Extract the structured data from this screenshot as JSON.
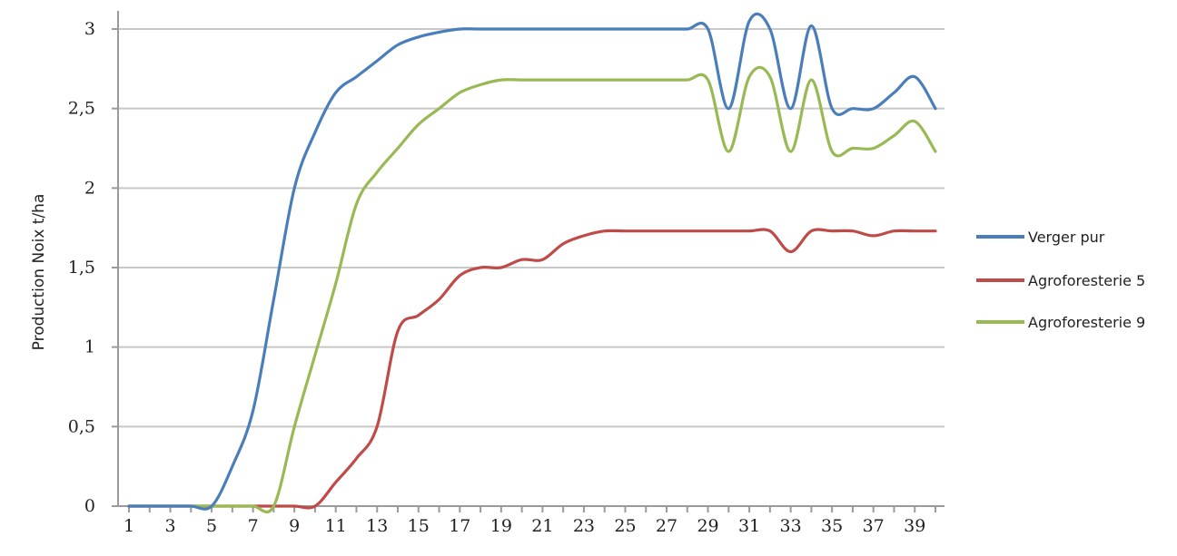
{
  "chart_data": {
    "type": "line",
    "title": "",
    "xlabel": "",
    "ylabel": "Production Noix t/ha",
    "ylim": [
      0,
      3
    ],
    "xlim": [
      1,
      40
    ],
    "grid": true,
    "legend_position": "right",
    "y_ticks": [
      "0",
      "0,5",
      "1",
      "1,5",
      "2",
      "2,5",
      "3"
    ],
    "y_tick_values": [
      0,
      0.5,
      1,
      1.5,
      2,
      2.5,
      3
    ],
    "x_ticks": [
      "1",
      "3",
      "5",
      "7",
      "9",
      "11",
      "13",
      "15",
      "17",
      "19",
      "21",
      "23",
      "25",
      "27",
      "29",
      "31",
      "33",
      "35",
      "37",
      "39"
    ],
    "x": [
      1,
      2,
      3,
      4,
      5,
      6,
      7,
      8,
      9,
      10,
      11,
      12,
      13,
      14,
      15,
      16,
      17,
      18,
      19,
      20,
      21,
      22,
      23,
      24,
      25,
      26,
      27,
      28,
      29,
      30,
      31,
      32,
      33,
      34,
      35,
      36,
      37,
      38,
      39,
      40
    ],
    "series": [
      {
        "name": "Verger pur",
        "color": "#4a7ebb",
        "values": [
          0,
          0,
          0,
          0,
          0,
          0.25,
          0.6,
          1.3,
          2.0,
          2.35,
          2.6,
          2.7,
          2.8,
          2.9,
          2.95,
          2.98,
          3.0,
          3.0,
          3.0,
          3.0,
          3.0,
          3.0,
          3.0,
          3.0,
          3.0,
          3.0,
          3.0,
          3.0,
          3.0,
          2.5,
          3.05,
          3.0,
          2.5,
          3.02,
          2.5,
          2.5,
          2.5,
          2.6,
          2.7,
          2.5
        ]
      },
      {
        "name": "Agroforesterie 5",
        "color": "#be4b48",
        "values": [
          0,
          0,
          0,
          0,
          0,
          0,
          0,
          0,
          0,
          0,
          0.15,
          0.3,
          0.5,
          1.1,
          1.2,
          1.3,
          1.45,
          1.5,
          1.5,
          1.55,
          1.55,
          1.65,
          1.7,
          1.73,
          1.73,
          1.73,
          1.73,
          1.73,
          1.73,
          1.73,
          1.73,
          1.73,
          1.6,
          1.73,
          1.73,
          1.73,
          1.7,
          1.73,
          1.73,
          1.73
        ]
      },
      {
        "name": "Agroforesterie 9",
        "color": "#98b954",
        "values": [
          0,
          0,
          0,
          0,
          0,
          0,
          0,
          0,
          0.5,
          0.95,
          1.4,
          1.9,
          2.1,
          2.25,
          2.4,
          2.5,
          2.6,
          2.65,
          2.68,
          2.68,
          2.68,
          2.68,
          2.68,
          2.68,
          2.68,
          2.68,
          2.68,
          2.68,
          2.68,
          2.23,
          2.7,
          2.7,
          2.23,
          2.68,
          2.23,
          2.25,
          2.25,
          2.33,
          2.42,
          2.23
        ]
      }
    ]
  }
}
